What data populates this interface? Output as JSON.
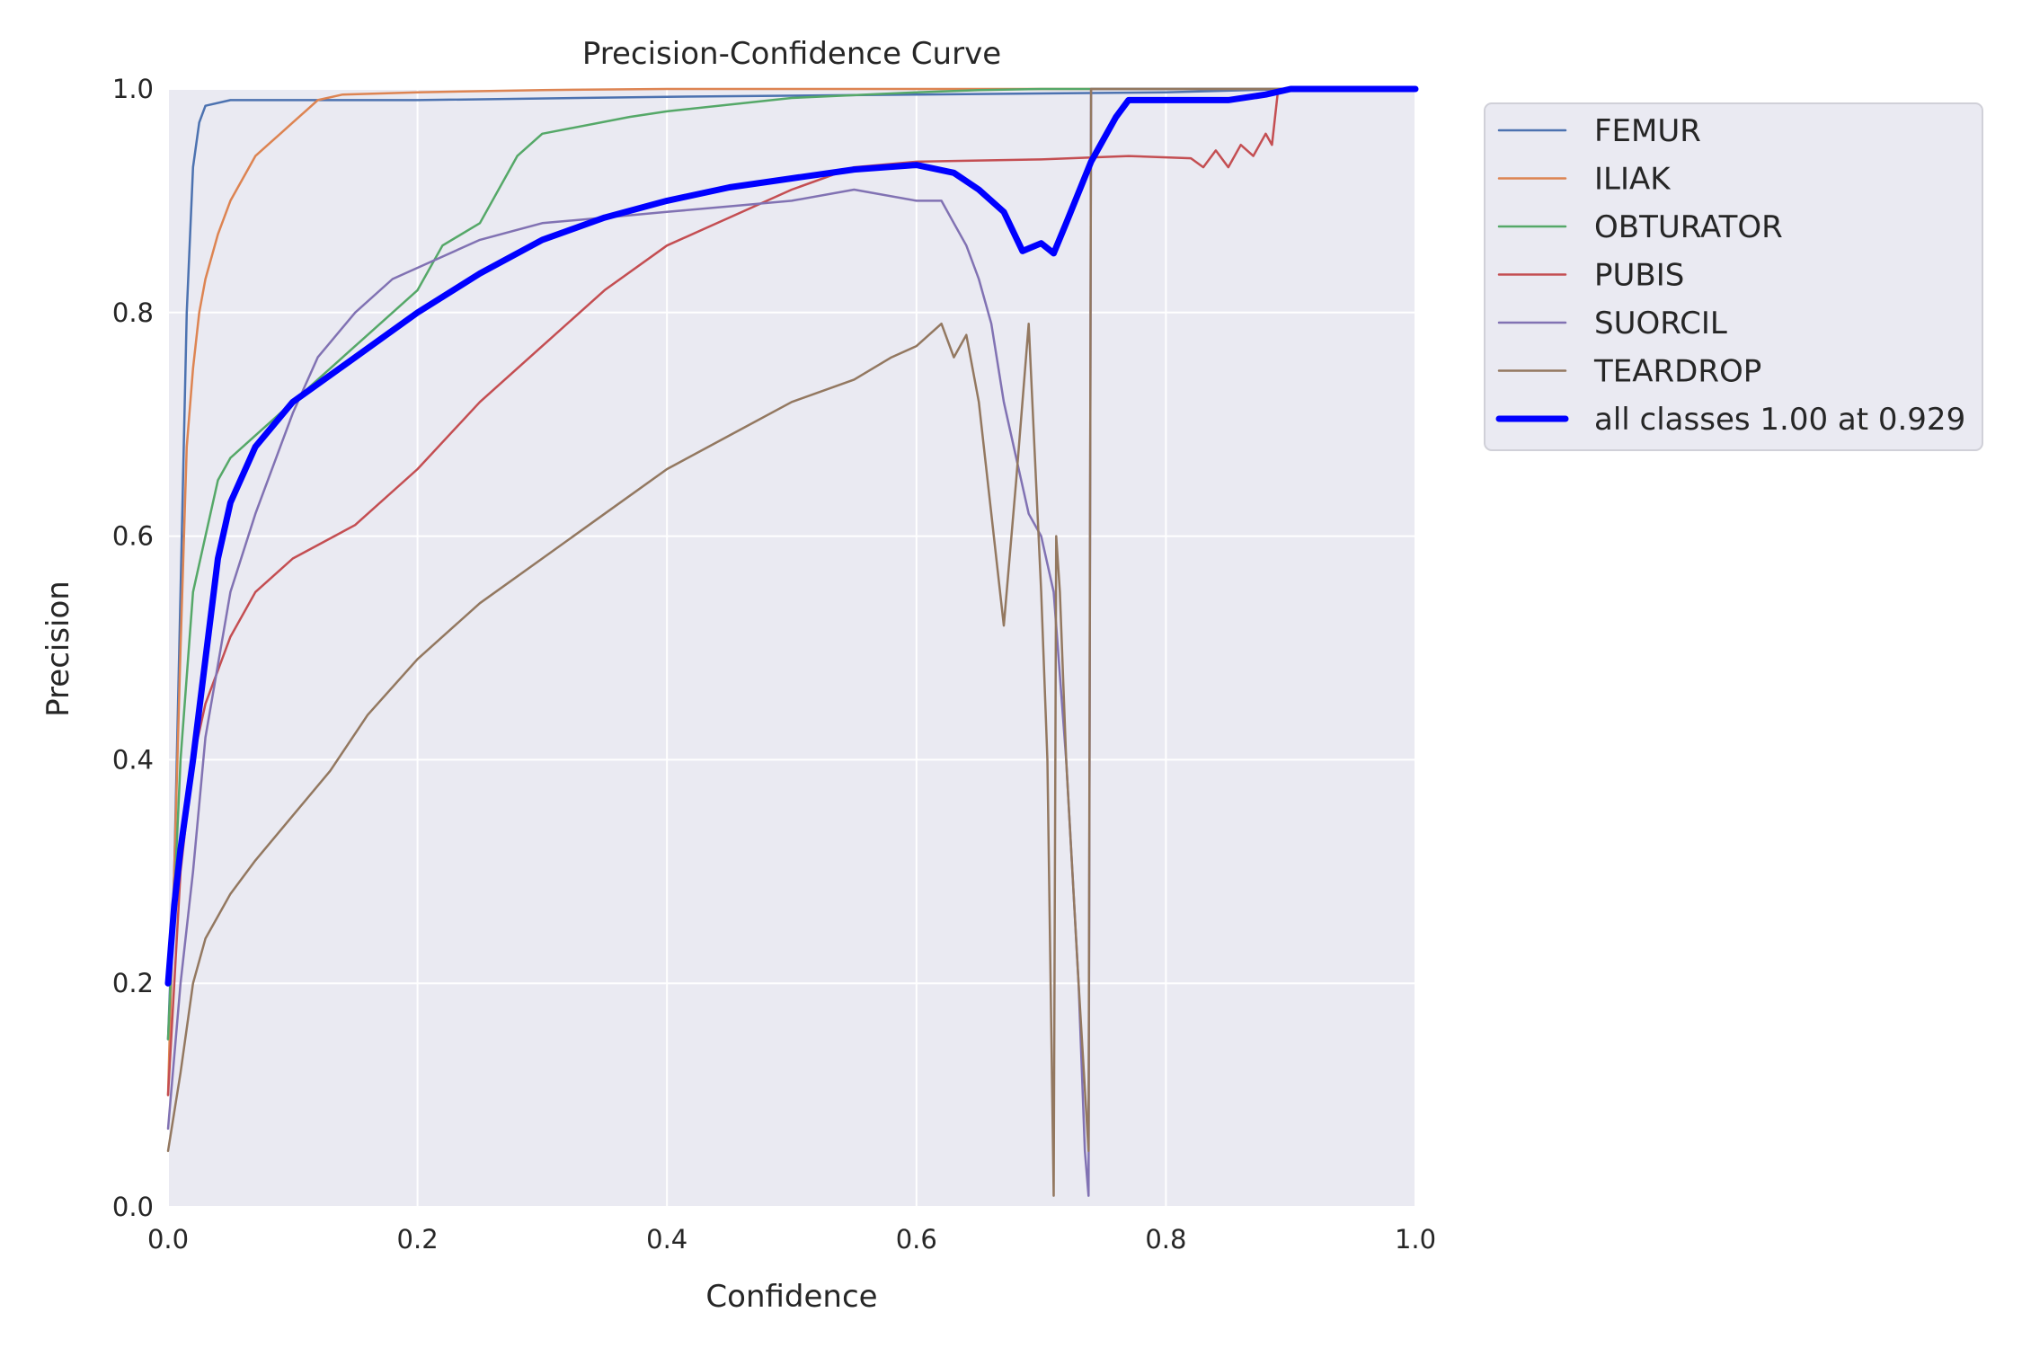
{
  "chart_data": {
    "type": "line",
    "title": "Precision-Confidence Curve",
    "xlabel": "Confidence",
    "ylabel": "Precision",
    "xlim": [
      0,
      1
    ],
    "ylim": [
      0,
      1
    ],
    "xticks": [
      "0.0",
      "0.2",
      "0.4",
      "0.6",
      "0.8",
      "1.0"
    ],
    "yticks": [
      "0.0",
      "0.2",
      "0.4",
      "0.6",
      "0.8",
      "1.0"
    ],
    "grid": true,
    "legend_position": "outside-top-right",
    "colors": {
      "background": "#eaeaf2",
      "grid": "#ffffff"
    },
    "series": [
      {
        "name": "FEMUR",
        "color": "#4c72b0",
        "x": [
          0.0,
          0.005,
          0.01,
          0.015,
          0.02,
          0.025,
          0.03,
          0.05,
          0.1,
          0.2,
          0.4,
          0.6,
          0.8,
          0.9,
          1.0
        ],
        "y": [
          0.15,
          0.3,
          0.55,
          0.8,
          0.93,
          0.97,
          0.985,
          0.99,
          0.99,
          0.99,
          0.993,
          0.995,
          0.997,
          1.0,
          1.0
        ]
      },
      {
        "name": "ILIAK",
        "color": "#dd8452",
        "x": [
          0.0,
          0.005,
          0.01,
          0.015,
          0.02,
          0.025,
          0.03,
          0.04,
          0.05,
          0.06,
          0.07,
          0.08,
          0.09,
          0.1,
          0.11,
          0.12,
          0.14,
          0.2,
          0.3,
          0.4,
          1.0
        ],
        "y": [
          0.1,
          0.3,
          0.5,
          0.68,
          0.75,
          0.8,
          0.83,
          0.87,
          0.9,
          0.92,
          0.94,
          0.95,
          0.96,
          0.97,
          0.98,
          0.99,
          0.995,
          0.997,
          0.999,
          1.0,
          1.0
        ]
      },
      {
        "name": "OBTURATOR",
        "color": "#55a868",
        "x": [
          0.0,
          0.01,
          0.02,
          0.03,
          0.04,
          0.05,
          0.07,
          0.1,
          0.15,
          0.2,
          0.22,
          0.25,
          0.28,
          0.3,
          0.37,
          0.4,
          0.5,
          0.6,
          0.65,
          0.7,
          1.0
        ],
        "y": [
          0.15,
          0.4,
          0.55,
          0.6,
          0.65,
          0.67,
          0.69,
          0.72,
          0.77,
          0.82,
          0.86,
          0.88,
          0.94,
          0.96,
          0.975,
          0.98,
          0.992,
          0.997,
          0.999,
          1.0,
          1.0
        ]
      },
      {
        "name": "PUBIS",
        "color": "#c44e52",
        "x": [
          0.0,
          0.01,
          0.02,
          0.03,
          0.04,
          0.05,
          0.07,
          0.1,
          0.15,
          0.2,
          0.25,
          0.3,
          0.35,
          0.4,
          0.45,
          0.5,
          0.55,
          0.6,
          0.7,
          0.77,
          0.82,
          0.83,
          0.84,
          0.85,
          0.86,
          0.87,
          0.88,
          0.885,
          0.89,
          0.9,
          1.0
        ],
        "y": [
          0.1,
          0.3,
          0.4,
          0.45,
          0.48,
          0.51,
          0.55,
          0.58,
          0.61,
          0.66,
          0.72,
          0.77,
          0.82,
          0.86,
          0.885,
          0.91,
          0.93,
          0.935,
          0.937,
          0.94,
          0.938,
          0.93,
          0.945,
          0.93,
          0.95,
          0.94,
          0.96,
          0.95,
          1.0,
          1.0,
          1.0
        ]
      },
      {
        "name": "SUORCIL",
        "color": "#8172b3",
        "x": [
          0.0,
          0.01,
          0.02,
          0.03,
          0.05,
          0.07,
          0.09,
          0.1,
          0.12,
          0.15,
          0.18,
          0.2,
          0.25,
          0.3,
          0.35,
          0.4,
          0.45,
          0.5,
          0.55,
          0.6,
          0.62,
          0.63,
          0.64,
          0.65,
          0.66,
          0.67,
          0.68,
          0.69,
          0.7,
          0.71,
          0.72,
          0.73,
          0.735,
          0.738,
          0.74,
          1.0
        ],
        "y": [
          0.07,
          0.2,
          0.3,
          0.42,
          0.55,
          0.62,
          0.68,
          0.71,
          0.76,
          0.8,
          0.83,
          0.84,
          0.865,
          0.88,
          0.885,
          0.89,
          0.895,
          0.9,
          0.91,
          0.9,
          0.9,
          0.88,
          0.86,
          0.83,
          0.79,
          0.72,
          0.67,
          0.62,
          0.6,
          0.55,
          0.4,
          0.2,
          0.05,
          0.01,
          1.0,
          1.0
        ]
      },
      {
        "name": "TEARDROP",
        "color": "#937860",
        "x": [
          0.0,
          0.01,
          0.02,
          0.03,
          0.05,
          0.07,
          0.1,
          0.13,
          0.16,
          0.2,
          0.25,
          0.3,
          0.35,
          0.4,
          0.45,
          0.5,
          0.55,
          0.58,
          0.6,
          0.62,
          0.63,
          0.64,
          0.65,
          0.66,
          0.67,
          0.68,
          0.69,
          0.7,
          0.705,
          0.71,
          0.712,
          0.715,
          0.72,
          0.73,
          0.738,
          0.74,
          1.0
        ],
        "y": [
          0.05,
          0.12,
          0.2,
          0.24,
          0.28,
          0.31,
          0.35,
          0.39,
          0.44,
          0.49,
          0.54,
          0.58,
          0.62,
          0.66,
          0.69,
          0.72,
          0.74,
          0.76,
          0.77,
          0.79,
          0.76,
          0.78,
          0.72,
          0.62,
          0.52,
          0.65,
          0.79,
          0.55,
          0.4,
          0.01,
          0.6,
          0.55,
          0.4,
          0.2,
          0.05,
          1.0,
          1.0
        ]
      },
      {
        "name": "all classes 1.00 at 0.929",
        "color": "#0000ff",
        "thick": true,
        "x": [
          0.0,
          0.005,
          0.01,
          0.02,
          0.03,
          0.04,
          0.05,
          0.07,
          0.1,
          0.15,
          0.2,
          0.25,
          0.3,
          0.35,
          0.4,
          0.45,
          0.5,
          0.55,
          0.6,
          0.63,
          0.65,
          0.67,
          0.685,
          0.7,
          0.71,
          0.72,
          0.74,
          0.75,
          0.76,
          0.77,
          0.8,
          0.85,
          0.88,
          0.9,
          0.929,
          1.0
        ],
        "y": [
          0.2,
          0.27,
          0.32,
          0.4,
          0.49,
          0.58,
          0.63,
          0.68,
          0.72,
          0.76,
          0.8,
          0.835,
          0.865,
          0.885,
          0.9,
          0.912,
          0.92,
          0.928,
          0.932,
          0.925,
          0.91,
          0.89,
          0.855,
          0.862,
          0.853,
          0.88,
          0.935,
          0.955,
          0.975,
          0.99,
          0.99,
          0.99,
          0.995,
          1.0,
          1.0,
          1.0
        ]
      }
    ]
  }
}
